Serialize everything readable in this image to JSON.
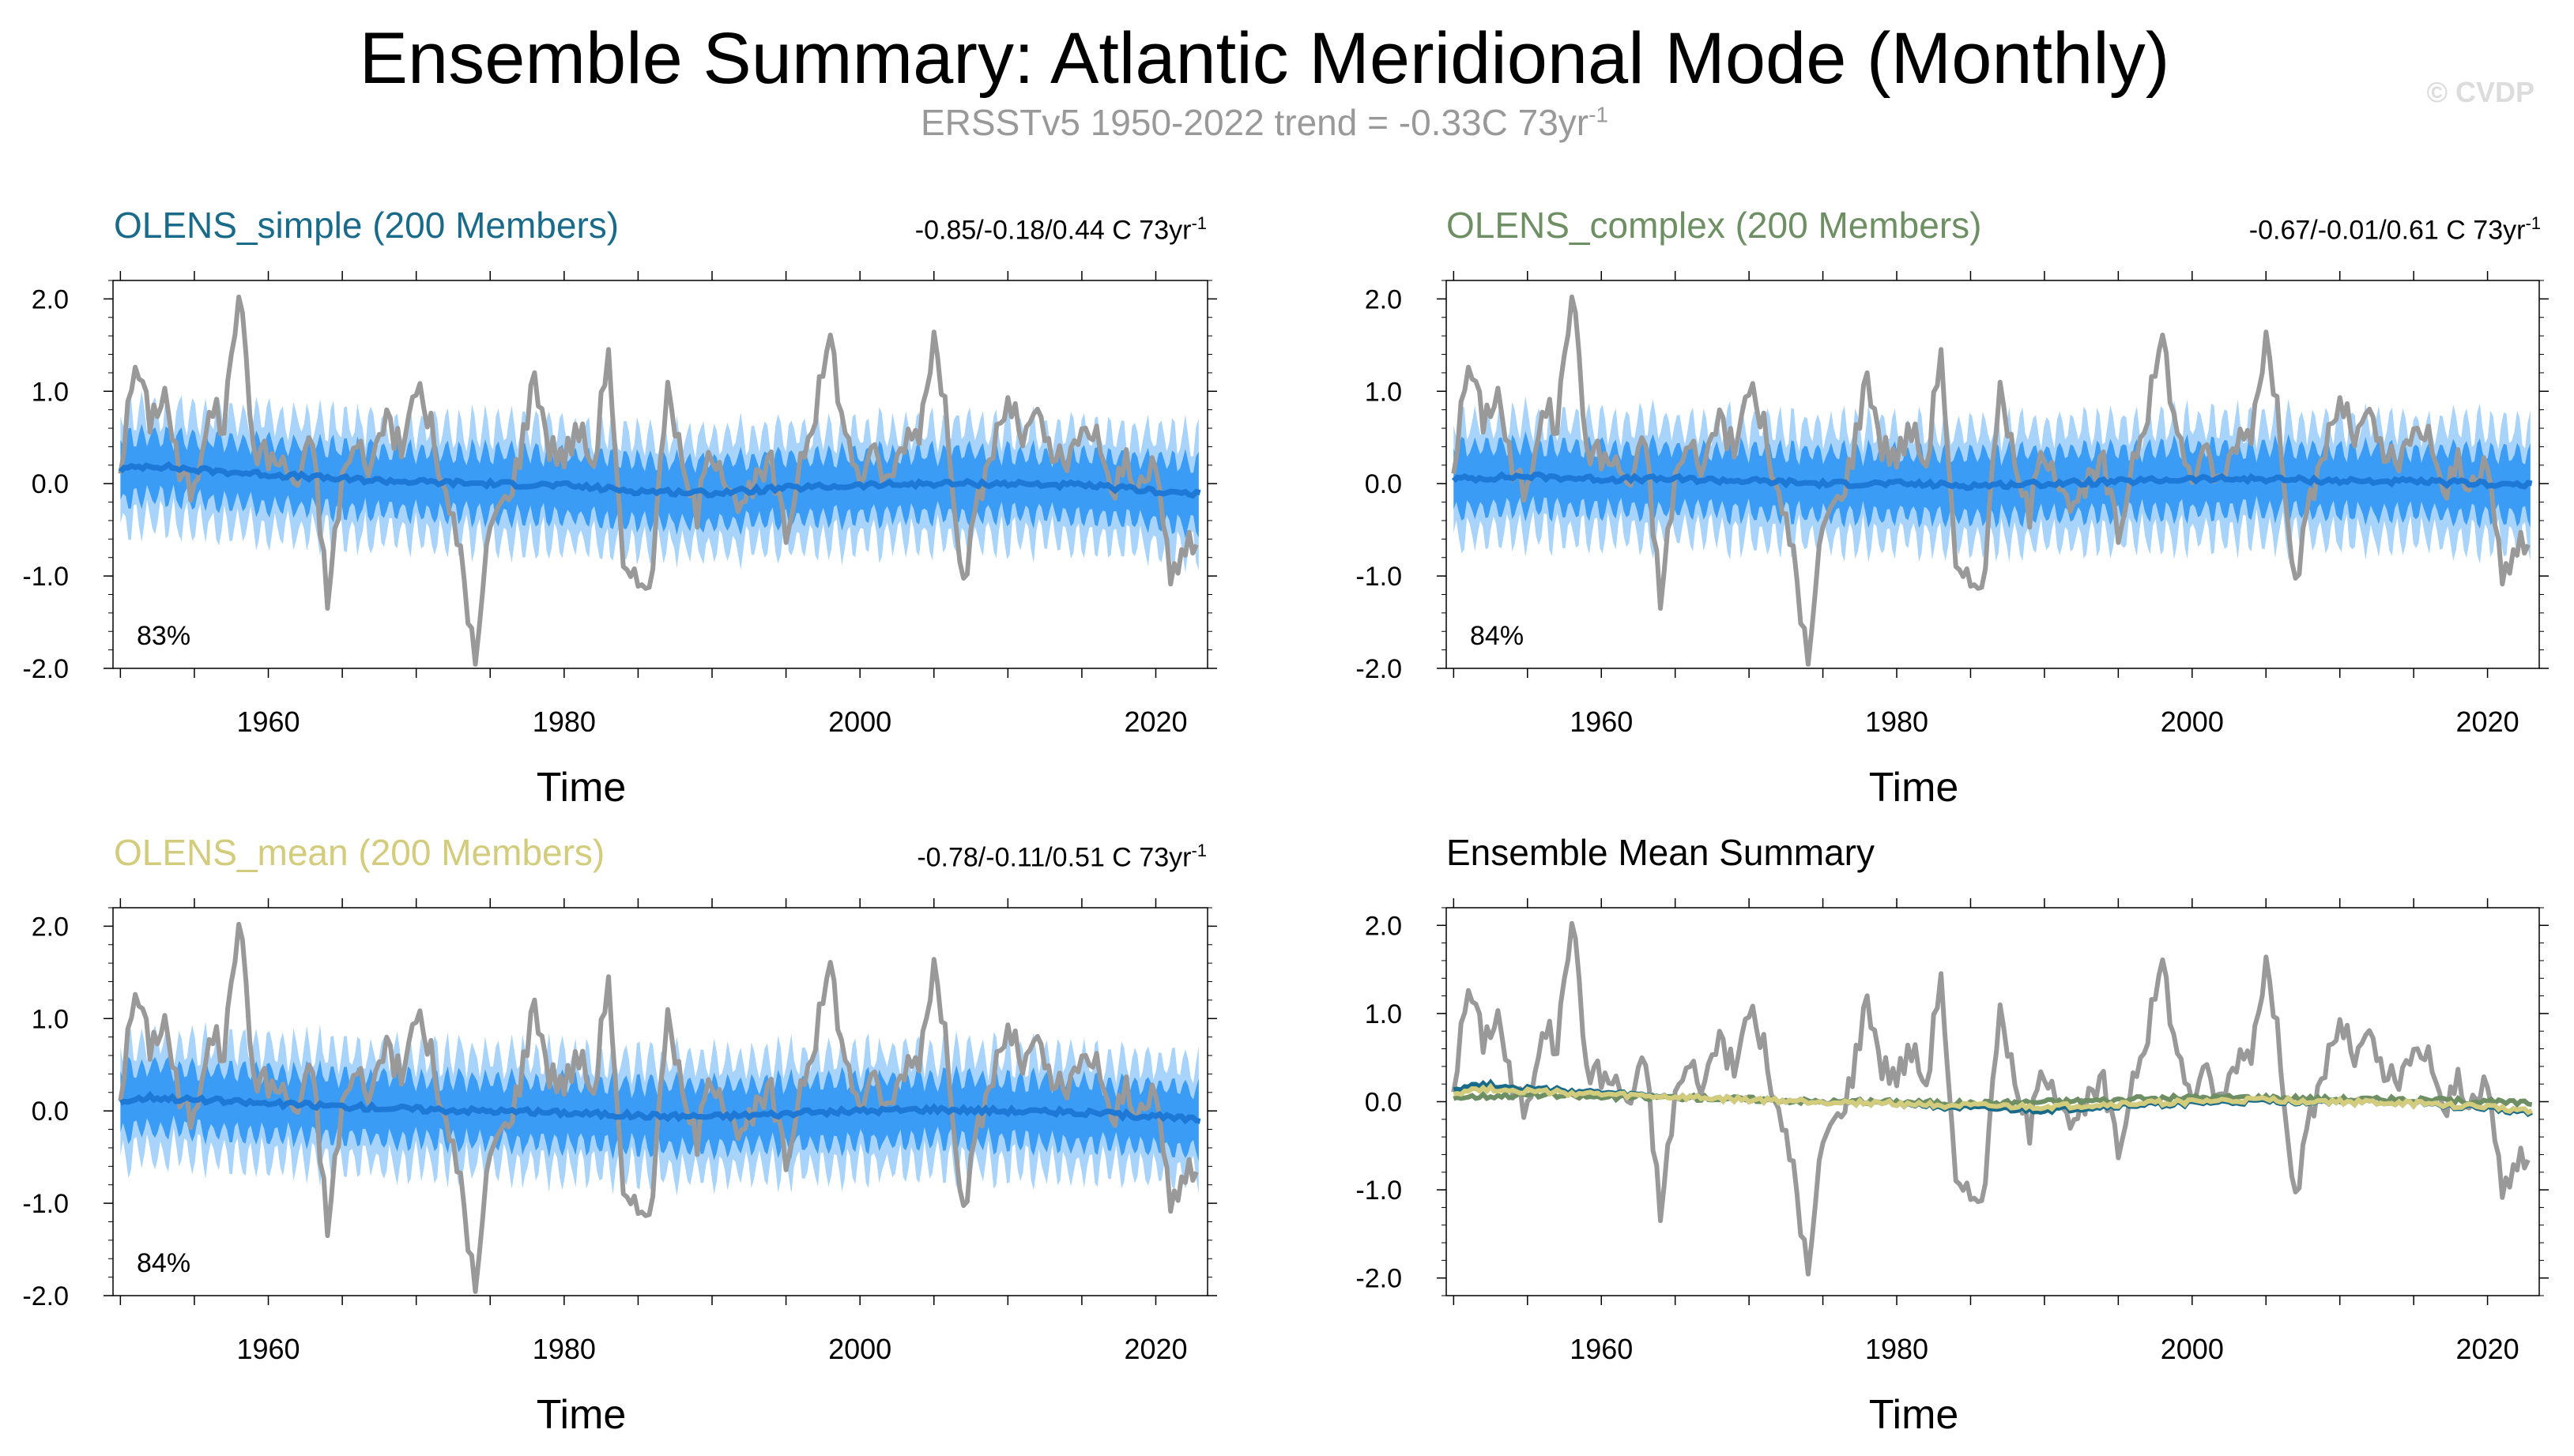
{
  "figure": {
    "title": "Ensemble Summary: Atlantic Meridional Mode (Monthly)",
    "subtitle": "ERSSTv5 1950-2022 trend = -0.33C 73yr",
    "subtitle_sup": "-1",
    "watermark": "© CVDP"
  },
  "colors": {
    "observed": "#999999",
    "spread_outer": "#a8d3fb",
    "spread_inner": "#3b9cf5",
    "ens_mean": "#1e78d6",
    "olens_simple": "#1a6b8a",
    "olens_complex": "#6d8f63",
    "olens_mean": "#d2cc7c"
  },
  "chart_data": [
    {
      "type": "line",
      "title": "OLENS_simple (200 Members)",
      "trend_text": "-0.85/-0.18/0.44 C 73yr",
      "trend_sup": "-1",
      "percent_label": "83%",
      "xlabel": "Time",
      "ylabel": "",
      "xlim": [
        1949.5,
        2023.5
      ],
      "ylim": [
        -2.0,
        2.2
      ],
      "xticks": [
        "1960",
        "1980",
        "2000",
        "2020"
      ],
      "yticks": [
        "2.0",
        "1.0",
        "0.0",
        "-1.0",
        "-2.0"
      ],
      "series": [
        {
          "role": "observed",
          "x": [
            1950.0,
            1951.0,
            1952.0,
            1953.0,
            1954.0,
            1955.0,
            1956.0,
            1957.0,
            1958.0,
            1959.0,
            1960.0,
            1961.0,
            1962.0,
            1963.0,
            1964.0,
            1965.0,
            1966.0,
            1967.0,
            1968.0,
            1969.0,
            1970.0,
            1971.0,
            1972.0,
            1973.0,
            1974.0,
            1975.0,
            1976.0,
            1977.0,
            1978.0,
            1979.0,
            1980.0,
            1981.0,
            1982.0,
            1983.0,
            1984.0,
            1985.0,
            1986.0,
            1987.0,
            1988.0,
            1989.0,
            1990.0,
            1991.0,
            1992.0,
            1993.0,
            1994.0,
            1995.0,
            1996.0,
            1997.0,
            1998.0,
            1999.0,
            2000.0,
            2001.0,
            2002.0,
            2003.0,
            2004.0,
            2005.0,
            2006.0,
            2007.0,
            2008.0,
            2009.0,
            2010.0,
            2011.0,
            2012.0,
            2013.0,
            2014.0,
            2015.0,
            2016.0,
            2017.0,
            2018.0,
            2019.0,
            2020.0,
            2021.0,
            2022.0
          ],
          "values": [
            0.2,
            1.3,
            0.7,
            1.0,
            0.1,
            -0.1,
            0.9,
            0.6,
            2.15,
            0.4,
            0.3,
            0.2,
            0.0,
            0.5,
            -1.3,
            0.1,
            0.4,
            0.2,
            0.8,
            0.3,
            1.1,
            0.6,
            -0.2,
            -0.7,
            -2.0,
            -0.4,
            -0.2,
            0.3,
            1.2,
            0.4,
            0.3,
            0.6,
            0.2,
            1.5,
            -1.0,
            -1.1,
            -0.9,
            1.2,
            0.1,
            -0.3,
            0.4,
            0.1,
            -0.3,
            0.0,
            0.2,
            -0.6,
            0.3,
            0.8,
            1.6,
            0.5,
            0.1,
            0.3,
            0.0,
            0.5,
            0.6,
            1.6,
            0.5,
            -1.1,
            -0.2,
            0.4,
            0.9,
            0.5,
            0.7,
            0.3,
            0.2,
            0.5,
            0.6,
            -0.2,
            0.3,
            -0.1,
            0.2,
            -1.0,
            -0.7
          ]
        },
        {
          "role": "ens_mean",
          "x": [
            1950.0,
            1952.0,
            1955.0,
            1960.0,
            1965.0,
            1970.0,
            1975.0,
            1980.0,
            1985.0,
            1990.0,
            1995.0,
            2000.0,
            2005.0,
            2010.0,
            2015.0,
            2020.0,
            2023.0
          ],
          "values": [
            0.15,
            0.2,
            0.15,
            0.1,
            0.05,
            0.02,
            0.0,
            -0.02,
            -0.08,
            -0.1,
            -0.05,
            -0.02,
            0.0,
            0.0,
            -0.02,
            -0.08,
            -0.12
          ]
        }
      ],
      "spread_outer_halfwidth": 0.8,
      "spread_inner_halfwidth": 0.45
    },
    {
      "type": "line",
      "title": "OLENS_complex (200 Members)",
      "trend_text": "-0.67/-0.01/0.61 C 73yr",
      "trend_sup": "-1",
      "percent_label": "84%",
      "xlabel": "Time",
      "ylabel": "",
      "xlim": [
        1949.5,
        2023.5
      ],
      "ylim": [
        -2.0,
        2.2
      ],
      "xticks": [
        "1960",
        "1980",
        "2000",
        "2020"
      ],
      "yticks": [
        "2.0",
        "1.0",
        "0.0",
        "-1.0",
        "-2.0"
      ],
      "series": [
        {
          "role": "observed",
          "x": [
            1950.0,
            1951.0,
            1952.0,
            1953.0,
            1954.0,
            1955.0,
            1956.0,
            1957.0,
            1958.0,
            1959.0,
            1960.0,
            1961.0,
            1962.0,
            1963.0,
            1964.0,
            1965.0,
            1966.0,
            1967.0,
            1968.0,
            1969.0,
            1970.0,
            1971.0,
            1972.0,
            1973.0,
            1974.0,
            1975.0,
            1976.0,
            1977.0,
            1978.0,
            1979.0,
            1980.0,
            1981.0,
            1982.0,
            1983.0,
            1984.0,
            1985.0,
            1986.0,
            1987.0,
            1988.0,
            1989.0,
            1990.0,
            1991.0,
            1992.0,
            1993.0,
            1994.0,
            1995.0,
            1996.0,
            1997.0,
            1998.0,
            1999.0,
            2000.0,
            2001.0,
            2002.0,
            2003.0,
            2004.0,
            2005.0,
            2006.0,
            2007.0,
            2008.0,
            2009.0,
            2010.0,
            2011.0,
            2012.0,
            2013.0,
            2014.0,
            2015.0,
            2016.0,
            2017.0,
            2018.0,
            2019.0,
            2020.0,
            2021.0,
            2022.0
          ],
          "values": [
            0.2,
            1.3,
            0.7,
            1.0,
            0.1,
            -0.1,
            0.9,
            0.6,
            2.15,
            0.4,
            0.3,
            0.2,
            0.0,
            0.5,
            -1.3,
            0.1,
            0.4,
            0.2,
            0.8,
            0.3,
            1.1,
            0.6,
            -0.2,
            -0.7,
            -2.0,
            -0.4,
            -0.2,
            0.3,
            1.2,
            0.4,
            0.3,
            0.6,
            0.2,
            1.5,
            -1.0,
            -1.1,
            -0.9,
            1.2,
            0.1,
            -0.3,
            0.4,
            0.1,
            -0.3,
            0.0,
            0.2,
            -0.6,
            0.3,
            0.8,
            1.6,
            0.5,
            0.1,
            0.3,
            0.0,
            0.5,
            0.6,
            1.6,
            0.5,
            -1.1,
            -0.2,
            0.4,
            0.9,
            0.5,
            0.7,
            0.3,
            0.2,
            0.5,
            0.6,
            -0.2,
            0.3,
            -0.1,
            0.2,
            -1.0,
            -0.7
          ]
        },
        {
          "role": "ens_mean",
          "x": [
            1950.0,
            1955.0,
            1960.0,
            1965.0,
            1970.0,
            1975.0,
            1980.0,
            1985.0,
            1990.0,
            1995.0,
            2000.0,
            2005.0,
            2010.0,
            2015.0,
            2020.0,
            2023.0
          ],
          "values": [
            0.05,
            0.08,
            0.05,
            0.05,
            0.03,
            0.0,
            0.0,
            -0.02,
            0.0,
            0.02,
            0.05,
            0.05,
            0.03,
            0.02,
            0.0,
            -0.02
          ]
        }
      ],
      "spread_outer_halfwidth": 0.8,
      "spread_inner_halfwidth": 0.45
    },
    {
      "type": "line",
      "title": "OLENS_mean (200 Members)",
      "trend_text": "-0.78/-0.11/0.51 C 73yr",
      "trend_sup": "-1",
      "percent_label": "84%",
      "xlabel": "Time",
      "ylabel": "",
      "xlim": [
        1949.5,
        2023.5
      ],
      "ylim": [
        -2.0,
        2.2
      ],
      "xticks": [
        "1960",
        "1980",
        "2000",
        "2020"
      ],
      "yticks": [
        "2.0",
        "1.0",
        "0.0",
        "-1.0",
        "-2.0"
      ],
      "series": [
        {
          "role": "observed",
          "x": [
            1950.0,
            1951.0,
            1952.0,
            1953.0,
            1954.0,
            1955.0,
            1956.0,
            1957.0,
            1958.0,
            1959.0,
            1960.0,
            1961.0,
            1962.0,
            1963.0,
            1964.0,
            1965.0,
            1966.0,
            1967.0,
            1968.0,
            1969.0,
            1970.0,
            1971.0,
            1972.0,
            1973.0,
            1974.0,
            1975.0,
            1976.0,
            1977.0,
            1978.0,
            1979.0,
            1980.0,
            1981.0,
            1982.0,
            1983.0,
            1984.0,
            1985.0,
            1986.0,
            1987.0,
            1988.0,
            1989.0,
            1990.0,
            1991.0,
            1992.0,
            1993.0,
            1994.0,
            1995.0,
            1996.0,
            1997.0,
            1998.0,
            1999.0,
            2000.0,
            2001.0,
            2002.0,
            2003.0,
            2004.0,
            2005.0,
            2006.0,
            2007.0,
            2008.0,
            2009.0,
            2010.0,
            2011.0,
            2012.0,
            2013.0,
            2014.0,
            2015.0,
            2016.0,
            2017.0,
            2018.0,
            2019.0,
            2020.0,
            2021.0,
            2022.0
          ],
          "values": [
            0.2,
            1.3,
            0.7,
            1.0,
            0.1,
            -0.1,
            0.9,
            0.6,
            2.15,
            0.4,
            0.3,
            0.2,
            0.0,
            0.5,
            -1.3,
            0.1,
            0.4,
            0.2,
            0.8,
            0.3,
            1.1,
            0.6,
            -0.2,
            -0.7,
            -2.0,
            -0.4,
            -0.2,
            0.3,
            1.2,
            0.4,
            0.3,
            0.6,
            0.2,
            1.5,
            -1.0,
            -1.1,
            -0.9,
            1.2,
            0.1,
            -0.3,
            0.4,
            0.1,
            -0.3,
            0.0,
            0.2,
            -0.6,
            0.3,
            0.8,
            1.6,
            0.5,
            0.1,
            0.3,
            0.0,
            0.5,
            0.6,
            1.6,
            0.5,
            -1.1,
            -0.2,
            0.4,
            0.9,
            0.5,
            0.7,
            0.3,
            0.2,
            0.5,
            0.6,
            -0.2,
            0.3,
            -0.1,
            0.2,
            -1.0,
            -0.7
          ]
        },
        {
          "role": "ens_mean",
          "x": [
            1950.0,
            1952.0,
            1955.0,
            1960.0,
            1965.0,
            1970.0,
            1975.0,
            1980.0,
            1985.0,
            1990.0,
            1995.0,
            2000.0,
            2005.0,
            2010.0,
            2015.0,
            2020.0,
            2023.0
          ],
          "values": [
            0.1,
            0.15,
            0.12,
            0.08,
            0.05,
            0.02,
            0.0,
            -0.02,
            -0.05,
            -0.06,
            -0.03,
            0.0,
            0.02,
            0.0,
            -0.02,
            -0.06,
            -0.1
          ]
        }
      ],
      "spread_outer_halfwidth": 0.8,
      "spread_inner_halfwidth": 0.45
    },
    {
      "type": "line",
      "title": "Ensemble Mean Summary",
      "xlabel": "Time",
      "ylabel": "",
      "xlim": [
        1949.5,
        2023.5
      ],
      "ylim": [
        -2.2,
        2.2
      ],
      "xticks": [
        "1960",
        "1980",
        "2000",
        "2020"
      ],
      "yticks": [
        "2.0",
        "1.0",
        "0.0",
        "-1.0",
        "-2.0"
      ],
      "series": [
        {
          "role": "observed",
          "x": [
            1950.0,
            1951.0,
            1952.0,
            1953.0,
            1954.0,
            1955.0,
            1956.0,
            1957.0,
            1958.0,
            1959.0,
            1960.0,
            1961.0,
            1962.0,
            1963.0,
            1964.0,
            1965.0,
            1966.0,
            1967.0,
            1968.0,
            1969.0,
            1970.0,
            1971.0,
            1972.0,
            1973.0,
            1974.0,
            1975.0,
            1976.0,
            1977.0,
            1978.0,
            1979.0,
            1980.0,
            1981.0,
            1982.0,
            1983.0,
            1984.0,
            1985.0,
            1986.0,
            1987.0,
            1988.0,
            1989.0,
            1990.0,
            1991.0,
            1992.0,
            1993.0,
            1994.0,
            1995.0,
            1996.0,
            1997.0,
            1998.0,
            1999.0,
            2000.0,
            2001.0,
            2002.0,
            2003.0,
            2004.0,
            2005.0,
            2006.0,
            2007.0,
            2008.0,
            2009.0,
            2010.0,
            2011.0,
            2012.0,
            2013.0,
            2014.0,
            2015.0,
            2016.0,
            2017.0,
            2018.0,
            2019.0,
            2020.0,
            2021.0,
            2022.0
          ],
          "values": [
            0.2,
            1.3,
            0.7,
            1.0,
            0.1,
            -0.1,
            0.9,
            0.6,
            2.15,
            0.4,
            0.3,
            0.2,
            0.0,
            0.5,
            -1.3,
            0.1,
            0.4,
            0.2,
            0.8,
            0.3,
            1.1,
            0.6,
            -0.2,
            -0.7,
            -2.0,
            -0.4,
            -0.2,
            0.3,
            1.2,
            0.4,
            0.3,
            0.6,
            0.2,
            1.5,
            -1.0,
            -1.1,
            -0.9,
            1.2,
            0.1,
            -0.3,
            0.4,
            0.1,
            -0.3,
            0.0,
            0.2,
            -0.6,
            0.3,
            0.8,
            1.6,
            0.5,
            0.1,
            0.3,
            0.0,
            0.5,
            0.6,
            1.6,
            0.5,
            -1.1,
            -0.2,
            0.4,
            0.9,
            0.5,
            0.7,
            0.3,
            0.2,
            0.5,
            0.6,
            -0.2,
            0.3,
            -0.1,
            0.2,
            -1.0,
            -0.7
          ]
        },
        {
          "role": "olens_complex",
          "x": [
            1950.0,
            1955.0,
            1960.0,
            1965.0,
            1970.0,
            1975.0,
            1980.0,
            1985.0,
            1990.0,
            1995.0,
            2000.0,
            2005.0,
            2010.0,
            2015.0,
            2020.0,
            2023.0
          ],
          "values": [
            0.05,
            0.08,
            0.05,
            0.05,
            0.03,
            0.0,
            0.0,
            -0.02,
            0.0,
            0.02,
            0.05,
            0.05,
            0.03,
            0.02,
            0.0,
            -0.02
          ]
        },
        {
          "role": "olens_simple",
          "x": [
            1950.0,
            1952.0,
            1955.0,
            1960.0,
            1965.0,
            1970.0,
            1975.0,
            1980.0,
            1985.0,
            1990.0,
            1995.0,
            2000.0,
            2005.0,
            2010.0,
            2015.0,
            2020.0,
            2023.0
          ],
          "values": [
            0.15,
            0.2,
            0.15,
            0.1,
            0.05,
            0.02,
            0.0,
            -0.02,
            -0.08,
            -0.1,
            -0.05,
            -0.02,
            0.0,
            0.0,
            -0.02,
            -0.08,
            -0.12
          ]
        },
        {
          "role": "olens_mean",
          "x": [
            1950.0,
            1952.0,
            1955.0,
            1960.0,
            1965.0,
            1970.0,
            1975.0,
            1980.0,
            1985.0,
            1990.0,
            1995.0,
            2000.0,
            2005.0,
            2010.0,
            2015.0,
            2020.0,
            2023.0
          ],
          "values": [
            0.1,
            0.15,
            0.12,
            0.08,
            0.05,
            0.02,
            0.0,
            -0.02,
            -0.05,
            -0.06,
            -0.03,
            0.0,
            0.02,
            0.0,
            -0.02,
            -0.06,
            -0.1
          ]
        }
      ]
    }
  ]
}
